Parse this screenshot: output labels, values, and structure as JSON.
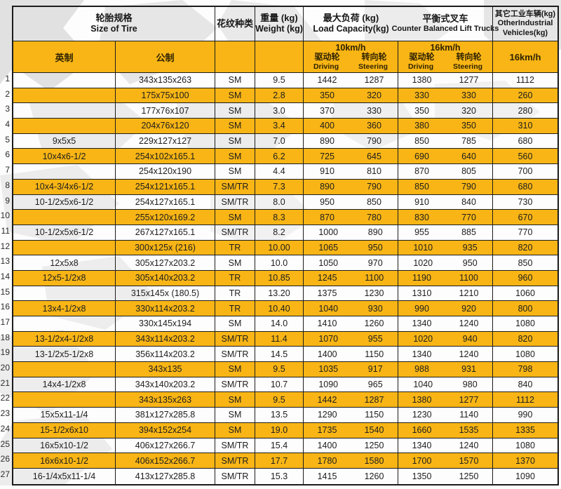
{
  "colors": {
    "highlight": "#F8B515",
    "border": "#1c1c1c",
    "watermark": "#d7d7d7",
    "subheader_text": "#2f2300"
  },
  "table": {
    "header": {
      "size_zh": "轮胎规格",
      "size_en": "Size of Tire",
      "pattern": "花纹种类",
      "weight_zh": "重量 (kg)",
      "weight_en": "Weight (kg)",
      "load_zh": "最大负荷 (kg)",
      "load_en": "Load Capacity(kg)",
      "cb_zh": "平衡式叉车",
      "cb_en": "Counter Balanced Lift Trucks",
      "other_zh": "其它工业车辆(kg)",
      "other_en1": "OtherIndustrial",
      "other_en2": "Vehicles(kg)"
    },
    "subheader": {
      "english": "英制",
      "metric": "公制",
      "g1_speed": "10km/h",
      "g2_speed": "16km/h",
      "other_speed": "16km/h",
      "driving_zh": "驱动轮",
      "steering_zh": "转向轮",
      "driving_en": "Driving",
      "steering_en": "Steering"
    },
    "rows": [
      {
        "no": "1",
        "english": "",
        "metric": "343x135x263",
        "pattern": "SM",
        "weight": "9.5",
        "lc": [
          "1442",
          "1287"
        ],
        "cb": [
          "1380",
          "1277"
        ],
        "other": "1112",
        "hl": false
      },
      {
        "no": "2",
        "english": "",
        "metric": "175x75x100",
        "pattern": "SM",
        "weight": "2.8",
        "lc": [
          "350",
          "320"
        ],
        "cb": [
          "330",
          "330"
        ],
        "other": "260",
        "hl": true
      },
      {
        "no": "3",
        "english": "",
        "metric": "177x76x107",
        "pattern": "SM",
        "weight": "3.0",
        "lc": [
          "370",
          "330"
        ],
        "cb": [
          "350",
          "320"
        ],
        "other": "280",
        "hl": false
      },
      {
        "no": "4",
        "english": "",
        "metric": "204x76x120",
        "pattern": "SM",
        "weight": "3.4",
        "lc": [
          "400",
          "360"
        ],
        "cb": [
          "380",
          "350"
        ],
        "other": "310",
        "hl": true
      },
      {
        "no": "5",
        "english": "9x5x5",
        "metric": "229x127x127",
        "pattern": "SM",
        "weight": "7.0",
        "lc": [
          "890",
          "790"
        ],
        "cb": [
          "850",
          "785"
        ],
        "other": "680",
        "hl": false
      },
      {
        "no": "6",
        "english": "10x4x6-1/2",
        "metric": "254x102x165.1",
        "pattern": "SM",
        "weight": "6.2",
        "lc": [
          "725",
          "645"
        ],
        "cb": [
          "690",
          "640"
        ],
        "other": "560",
        "hl": true
      },
      {
        "no": "7",
        "english": "",
        "metric": "254x120x190",
        "pattern": "SM",
        "weight": "4.4",
        "lc": [
          "910",
          "810"
        ],
        "cb": [
          "870",
          "805"
        ],
        "other": "700",
        "hl": false
      },
      {
        "no": "8",
        "english": "10x4-3/4x6-1/2",
        "metric": "254x121x165.1",
        "pattern": "SM/TR",
        "weight": "7.3",
        "lc": [
          "890",
          "790"
        ],
        "cb": [
          "850",
          "790"
        ],
        "other": "680",
        "hl": true
      },
      {
        "no": "9",
        "english": "10-1/2x5x6-1/2",
        "metric": "254x127x165.1",
        "pattern": "SM/TR",
        "weight": "8.0",
        "lc": [
          "950",
          "850"
        ],
        "cb": [
          "910",
          "840"
        ],
        "other": "730",
        "hl": false
      },
      {
        "no": "10",
        "english": "",
        "metric": "255x120x169.2",
        "pattern": "SM",
        "weight": "8.3",
        "lc": [
          "870",
          "780"
        ],
        "cb": [
          "830",
          "770"
        ],
        "other": "670",
        "hl": true
      },
      {
        "no": "11",
        "english": "10-1/2x5x6-1/2",
        "metric": "267x127x165.1",
        "pattern": "SM/TR",
        "weight": "8.2",
        "lc": [
          "1000",
          "890"
        ],
        "cb": [
          "955",
          "885"
        ],
        "other": "770",
        "hl": false
      },
      {
        "no": "12",
        "english": "",
        "metric": "300x125x (216)",
        "pattern": "TR",
        "weight": "10.00",
        "lc": [
          "1065",
          "950"
        ],
        "cb": [
          "1010",
          "935"
        ],
        "other": "820",
        "hl": true
      },
      {
        "no": "13",
        "english": "12x5x8",
        "metric": "305x127x203.2",
        "pattern": "SM",
        "weight": "10.0",
        "lc": [
          "1050",
          "970"
        ],
        "cb": [
          "1020",
          "950"
        ],
        "other": "850",
        "hl": false
      },
      {
        "no": "14",
        "english": "12x5-1/2x8",
        "metric": "305x140x203.2",
        "pattern": "TR",
        "weight": "10.85",
        "lc": [
          "1245",
          "1100"
        ],
        "cb": [
          "1190",
          "1100"
        ],
        "other": "960",
        "hl": true
      },
      {
        "no": "15",
        "english": "",
        "metric": "315x145x (180.5)",
        "pattern": "TR",
        "weight": "13.20",
        "lc": [
          "1375",
          "1230"
        ],
        "cb": [
          "1310",
          "1210"
        ],
        "other": "1060",
        "hl": false
      },
      {
        "no": "16",
        "english": "13x4-1/2x8",
        "metric": "330x114x203.2",
        "pattern": "TR",
        "weight": "10.40",
        "lc": [
          "1040",
          "930"
        ],
        "cb": [
          "990",
          "920"
        ],
        "other": "800",
        "hl": true
      },
      {
        "no": "17",
        "english": "",
        "metric": "330x145x194",
        "pattern": "SM",
        "weight": "14.0",
        "lc": [
          "1410",
          "1260"
        ],
        "cb": [
          "1340",
          "1240"
        ],
        "other": "1080",
        "hl": false
      },
      {
        "no": "18",
        "english": "13-1/2x4-1/2x8",
        "metric": "343x114x203.2",
        "pattern": "SM/TR",
        "weight": "11.4",
        "lc": [
          "1070",
          "955"
        ],
        "cb": [
          "1020",
          "940"
        ],
        "other": "820",
        "hl": true
      },
      {
        "no": "19",
        "english": "13-1/2x5-1/2x8",
        "metric": "356x114x203.2",
        "pattern": "SM/TR",
        "weight": "14.5",
        "lc": [
          "1400",
          "1150"
        ],
        "cb": [
          "1340",
          "1240"
        ],
        "other": "1080",
        "hl": false
      },
      {
        "no": "20",
        "english": "",
        "metric": "343x135",
        "pattern": "SM",
        "weight": "9.5",
        "lc": [
          "1035",
          "917"
        ],
        "cb": [
          "988",
          "931"
        ],
        "other": "798",
        "hl": true
      },
      {
        "no": "21",
        "english": "14x4-1/2x8",
        "metric": "343x140x203.2",
        "pattern": "SM/TR",
        "weight": "10.7",
        "lc": [
          "1090",
          "965"
        ],
        "cb": [
          "1040",
          "980"
        ],
        "other": "840",
        "hl": false
      },
      {
        "no": "22",
        "english": "",
        "metric": "343x135x263",
        "pattern": "SM",
        "weight": "9.5",
        "lc": [
          "1442",
          "1287"
        ],
        "cb": [
          "1380",
          "1277"
        ],
        "other": "1112",
        "hl": true
      },
      {
        "no": "23",
        "english": "15x5x11-1/4",
        "metric": "381x127x285.8",
        "pattern": "SM",
        "weight": "13.5",
        "lc": [
          "1290",
          "1150"
        ],
        "cb": [
          "1230",
          "1140"
        ],
        "other": "990",
        "hl": false
      },
      {
        "no": "24",
        "english": "15-1/2x6x10",
        "metric": "394x152x254",
        "pattern": "SM",
        "weight": "19.0",
        "lc": [
          "1735",
          "1540"
        ],
        "cb": [
          "1660",
          "1535"
        ],
        "other": "1335",
        "hl": true
      },
      {
        "no": "25",
        "english": "16x5x10-1/2",
        "metric": "406x127x266.7",
        "pattern": "SM/TR",
        "weight": "15.4",
        "lc": [
          "1400",
          "1250"
        ],
        "cb": [
          "1340",
          "1240"
        ],
        "other": "1080",
        "hl": false
      },
      {
        "no": "26",
        "english": "16x6x10-1/2",
        "metric": "406x152x266.7",
        "pattern": "SM/TR",
        "weight": "17.7",
        "lc": [
          "1780",
          "1580"
        ],
        "cb": [
          "1700",
          "1570"
        ],
        "other": "1370",
        "hl": true
      },
      {
        "no": "27",
        "english": "16-1/4x5x11-1/4",
        "metric": "413x127x285.8",
        "pattern": "SM/TR",
        "weight": "15.3",
        "lc": [
          "1415",
          "1260"
        ],
        "cb": [
          "1350",
          "1250"
        ],
        "other": "1090",
        "hl": false
      }
    ]
  }
}
